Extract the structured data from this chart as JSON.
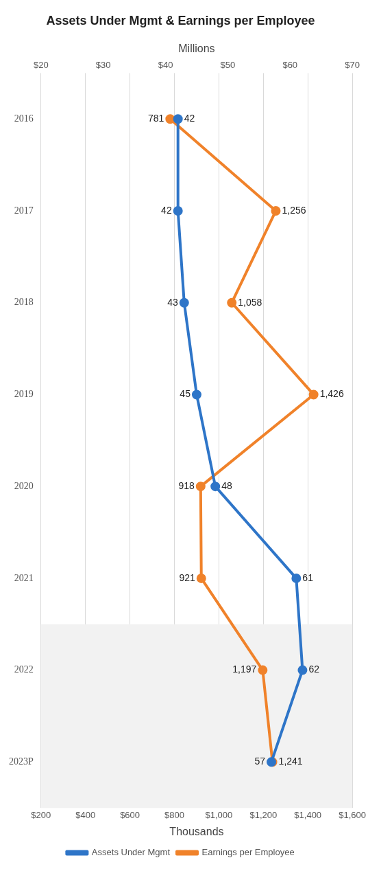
{
  "chart_data": {
    "type": "line",
    "orientation": "horizontal",
    "title": "Assets Under Mgmt & Earnings per Employee",
    "x2label": "Millions",
    "xlabel": "Thousands",
    "categories": [
      "2016",
      "2017",
      "2018",
      "2019",
      "2020",
      "2021",
      "2022",
      "2023P"
    ],
    "series": [
      {
        "name": "Assets Under Mgmt",
        "color": "#2e75c8",
        "axis": "x2",
        "values": [
          42,
          42,
          43,
          45,
          48,
          61,
          62,
          57
        ],
        "value_labels": [
          "42",
          "42",
          "43",
          "45",
          "48",
          "61",
          "62",
          "57"
        ]
      },
      {
        "name": "Earnings per Employee",
        "color": "#f0822a",
        "values": [
          781,
          1256,
          1058,
          1426,
          918,
          921,
          1197,
          1241
        ],
        "value_labels": [
          "781",
          "1,256",
          "1,058",
          "1,426",
          "918",
          "921",
          "1,197",
          "1,241"
        ]
      }
    ],
    "x2lim": [
      20,
      70
    ],
    "x2ticks": [
      {
        "value": 20,
        "label": "$20"
      },
      {
        "value": 30,
        "label": "$30"
      },
      {
        "value": 40,
        "label": "$40"
      },
      {
        "value": 50,
        "label": "$50"
      },
      {
        "value": 60,
        "label": "$60"
      },
      {
        "value": 70,
        "label": "$70"
      }
    ],
    "xlim": [
      200,
      1600
    ],
    "xticks": [
      {
        "value": 200,
        "label": "$200"
      },
      {
        "value": 400,
        "label": "$400"
      },
      {
        "value": 600,
        "label": "$600"
      },
      {
        "value": 800,
        "label": "$800"
      },
      {
        "value": 1000,
        "label": "$1,000"
      },
      {
        "value": 1200,
        "label": "$1,200"
      },
      {
        "value": 1400,
        "label": "$1,400"
      },
      {
        "value": 1600,
        "label": "$1,600"
      }
    ],
    "bands": [
      {
        "axis": "y",
        "from": "2022",
        "to": "2023P",
        "color": "#f2f2f2"
      }
    ],
    "grid": "x",
    "legend": "bottom",
    "marker": "circle",
    "line_style": "solid"
  }
}
